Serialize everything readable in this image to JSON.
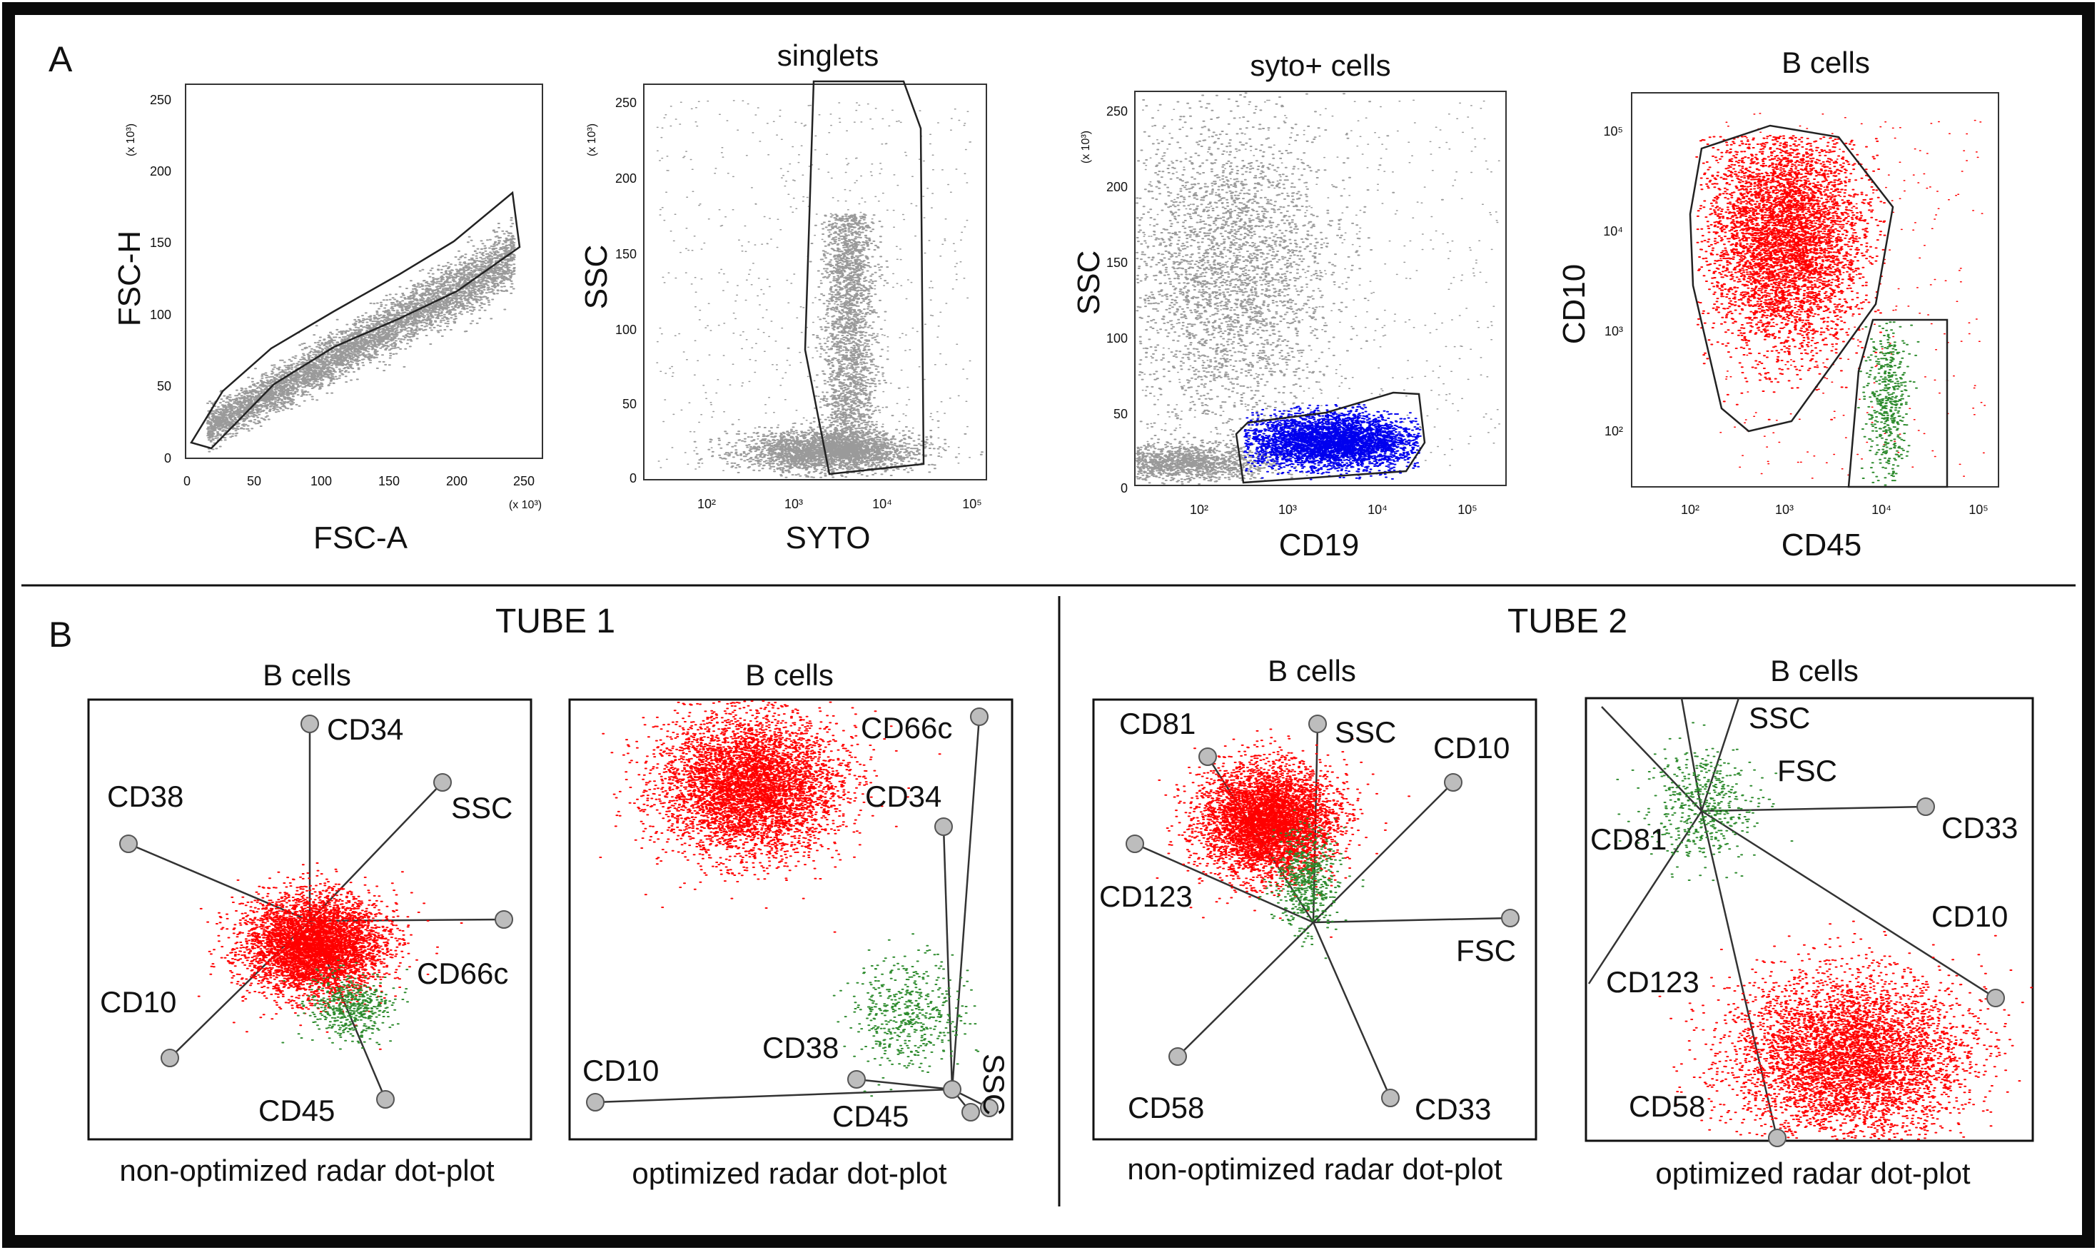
{
  "colors": {
    "frame": "#0a0a0a",
    "gray_dots": "#9a9a9a",
    "red_dots": "#ff0000",
    "green_dots": "#2e8b2e",
    "blue_dots": "#0000ee",
    "node": "#bdbdbd"
  },
  "panel_a": {
    "label": "A",
    "plots": [
      {
        "title": "",
        "xlabel": "FSC-A",
        "ylabel": "FSC-H",
        "xticks": [
          "0",
          "50",
          "100",
          "150",
          "200",
          "250"
        ],
        "yticks": [
          "0",
          "50",
          "100",
          "150",
          "200",
          "250"
        ],
        "x_mult": "(x 10³)",
        "y_mult": "(x 10³)"
      },
      {
        "title": "singlets",
        "xlabel": "SYTO",
        "ylabel": "SSC",
        "xticks": [
          "10²",
          "10³",
          "10⁴",
          "10⁵"
        ],
        "yticks": [
          "0",
          "50",
          "100",
          "150",
          "200",
          "250"
        ],
        "y_mult": "(x 10³)"
      },
      {
        "title": "syto+ cells",
        "xlabel": "CD19",
        "ylabel": "SSC",
        "xticks": [
          "10²",
          "10³",
          "10⁴",
          "10⁵"
        ],
        "yticks": [
          "0",
          "50",
          "100",
          "150",
          "200",
          "250"
        ],
        "y_mult": "(x 10³)"
      },
      {
        "title": "B cells",
        "xlabel": "CD45",
        "ylabel": "CD10",
        "xticks": [
          "10²",
          "10³",
          "10⁴",
          "10⁵"
        ],
        "yticks": [
          "10²",
          "10³",
          "10⁴",
          "10⁵"
        ]
      }
    ]
  },
  "panel_b": {
    "label": "B",
    "tubes": [
      {
        "title": "TUBE 1",
        "plots": [
          {
            "title": "B cells",
            "caption": "non-optimized radar dot-plot",
            "axes": [
              "CD34",
              "SSC",
              "CD38",
              "CD66c",
              "CD10",
              "CD45"
            ]
          },
          {
            "title": "B cells",
            "caption": "optimized radar dot-plot",
            "axes": [
              "CD66c",
              "CD34",
              "CD38",
              "SSC",
              "CD10",
              "CD45"
            ]
          }
        ]
      },
      {
        "title": "TUBE 2",
        "plots": [
          {
            "title": "B cells",
            "caption": "non-optimized radar dot-plot",
            "axes": [
              "CD81",
              "SSC",
              "CD10",
              "CD123",
              "FSC",
              "CD58",
              "CD33"
            ]
          },
          {
            "title": "B cells",
            "caption": "optimized radar dot-plot",
            "axes": [
              "SSC",
              "FSC",
              "CD33",
              "CD81",
              "CD10",
              "CD123",
              "CD58"
            ]
          }
        ]
      }
    ]
  }
}
